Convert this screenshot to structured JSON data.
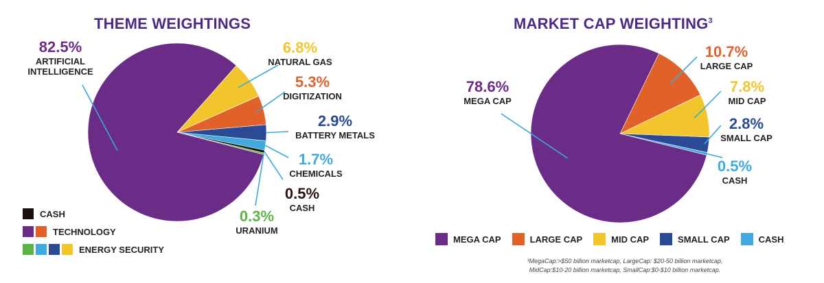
{
  "colors": {
    "purple": "#6a2c87",
    "orange": "#e0622a",
    "yellow": "#f2c52d",
    "navy": "#2b4a95",
    "lightblue": "#40a9de",
    "black": "#1a1010",
    "green": "#5bb446"
  },
  "chart_data": [
    {
      "type": "pie",
      "title": "THEME WEIGHTINGS",
      "slices": [
        {
          "label": "ARTIFICIAL INTELLIGENCE",
          "value": 82.5,
          "value_label": "82.5%",
          "color": "#6a2c87"
        },
        {
          "label": "NATURAL GAS",
          "value": 6.8,
          "value_label": "6.8%",
          "color": "#f2c52d"
        },
        {
          "label": "DIGITIZATION",
          "value": 5.3,
          "value_label": "5.3%",
          "color": "#e0622a"
        },
        {
          "label": "BATTERY METALS",
          "value": 2.9,
          "value_label": "2.9%",
          "color": "#2b4a95"
        },
        {
          "label": "CHEMICALS",
          "value": 1.7,
          "value_label": "1.7%",
          "color": "#40a9de"
        },
        {
          "label": "CASH",
          "value": 0.5,
          "value_label": "0.5%",
          "color": "#1a1010"
        },
        {
          "label": "URANIUM",
          "value": 0.3,
          "value_label": "0.3%",
          "color": "#5bb446"
        }
      ],
      "legend": [
        {
          "label": "CASH",
          "colors": [
            "#1a1010"
          ]
        },
        {
          "label": "TECHNOLOGY",
          "colors": [
            "#6a2c87",
            "#e0622a"
          ]
        },
        {
          "label": "ENERGY SECURITY",
          "colors": [
            "#5bb446",
            "#40a9de",
            "#2b4a95",
            "#f2c52d"
          ]
        }
      ],
      "legend_position": "bottom-left"
    },
    {
      "type": "pie",
      "title": "MARKET CAP WEIGHTING",
      "title_superscript": "3",
      "slices": [
        {
          "label": "MEGA CAP",
          "value": 78.6,
          "value_label": "78.6%",
          "color": "#6a2c87"
        },
        {
          "label": "LARGE CAP",
          "value": 10.7,
          "value_label": "10.7%",
          "color": "#e0622a"
        },
        {
          "label": "MID CAP",
          "value": 7.8,
          "value_label": "7.8%",
          "color": "#f2c52d"
        },
        {
          "label": "SMALL CAP",
          "value": 2.8,
          "value_label": "2.8%",
          "color": "#2b4a95"
        },
        {
          "label": "CASH",
          "value": 0.5,
          "value_label": "0.5%",
          "color": "#40a9de"
        }
      ],
      "legend": [
        {
          "label": "MEGA CAP",
          "color": "#6a2c87"
        },
        {
          "label": "LARGE CAP",
          "color": "#e0622a"
        },
        {
          "label": "MID CAP",
          "color": "#f2c52d"
        },
        {
          "label": "SMALL CAP",
          "color": "#2b4a95"
        },
        {
          "label": "CASH",
          "color": "#40a9de"
        }
      ],
      "legend_position": "bottom",
      "footnote": [
        "³MegaCap:>$50 billion marketcap, LargeCap: $20-50 billion marketcap,",
        "MidCap:$10-20 billion marketcap, SmallCap:$0-$10 billion marketcap."
      ]
    }
  ]
}
